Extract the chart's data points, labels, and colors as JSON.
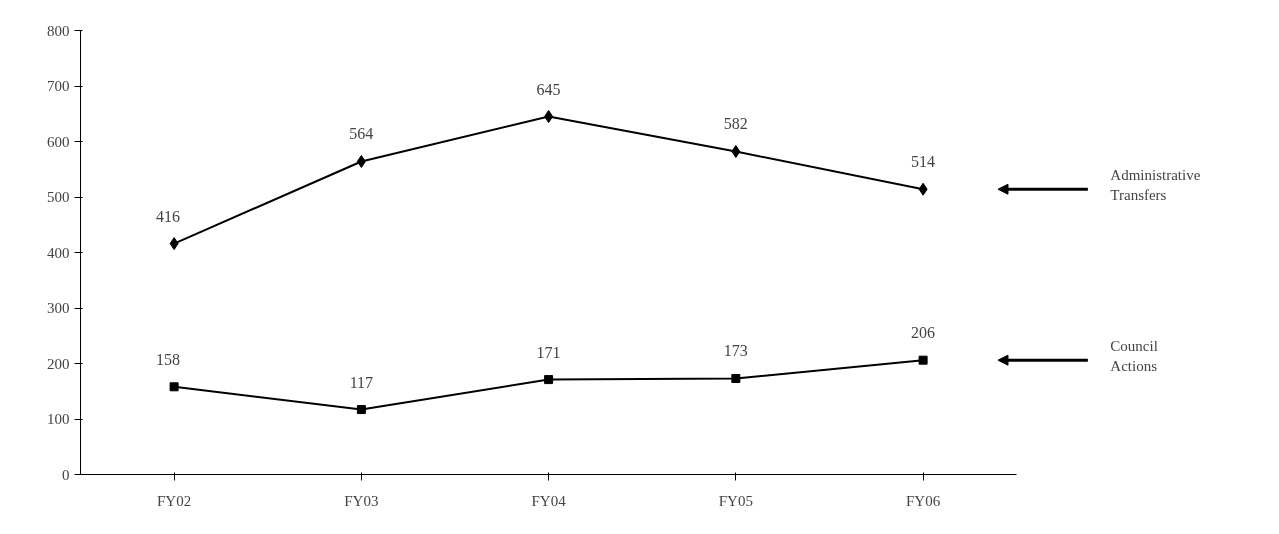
{
  "chart_data": {
    "type": "line",
    "categories": [
      "FY02",
      "FY03",
      "FY04",
      "FY05",
      "FY06"
    ],
    "series": [
      {
        "name": "Administrative Transfers",
        "color": "#000000",
        "marker": "diamond",
        "values": [
          416,
          564,
          645,
          582,
          514
        ]
      },
      {
        "name": "Council Actions",
        "color": "#000000",
        "marker": "square",
        "values": [
          158,
          117,
          171,
          173,
          206
        ]
      }
    ],
    "ylim": [
      0,
      800
    ],
    "yticks": [
      0,
      100,
      200,
      300,
      400,
      500,
      600,
      700,
      800
    ],
    "grid": false,
    "data_labels": true,
    "line_style": "solid"
  }
}
